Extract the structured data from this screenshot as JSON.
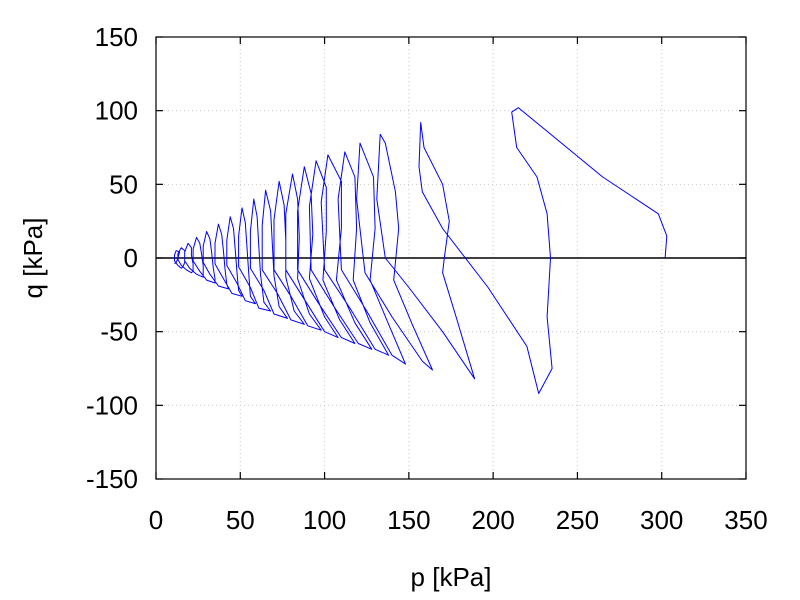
{
  "chart_data": {
    "type": "line",
    "title": "",
    "xlabel": "p [kPa]",
    "ylabel": "q [kPa]",
    "xlim": [
      0,
      350
    ],
    "ylim": [
      -150,
      150
    ],
    "xticks": [
      0,
      50,
      100,
      150,
      200,
      250,
      300,
      350
    ],
    "yticks": [
      -150,
      -100,
      -50,
      0,
      50,
      100,
      150
    ],
    "grid": true,
    "legend": "none",
    "colors": {
      "series": "#0000ff",
      "zero_line": "#000000",
      "grid": "#c8c8c8"
    },
    "series": [
      {
        "values": [
          [
            302,
            0
          ],
          [
            303,
            15
          ],
          [
            298,
            30
          ],
          [
            265,
            55
          ],
          [
            215,
            102
          ],
          [
            211,
            99
          ],
          [
            214,
            75
          ],
          [
            226,
            55
          ],
          [
            232,
            30
          ],
          [
            234,
            0
          ],
          [
            232,
            -40
          ],
          [
            235,
            -75
          ],
          [
            227,
            -92
          ],
          [
            220,
            -60
          ],
          [
            197,
            -20
          ],
          [
            170,
            20
          ],
          [
            158,
            45
          ],
          [
            156,
            62
          ],
          [
            157,
            92
          ],
          [
            159,
            75
          ],
          [
            170,
            50
          ],
          [
            174,
            25
          ],
          [
            171,
            0
          ],
          [
            170,
            -10
          ],
          [
            178,
            -40
          ],
          [
            189,
            -82
          ],
          [
            170,
            -50
          ],
          [
            150,
            -20
          ],
          [
            136,
            0
          ],
          [
            131,
            40
          ],
          [
            133,
            84
          ],
          [
            136,
            78
          ],
          [
            142,
            45
          ],
          [
            144,
            20
          ],
          [
            141,
            -15
          ],
          [
            152,
            -45
          ],
          [
            164,
            -76
          ],
          [
            158,
            -70
          ],
          [
            140,
            -40
          ],
          [
            124,
            -10
          ],
          [
            119,
            40
          ],
          [
            121,
            78
          ],
          [
            129,
            55
          ],
          [
            130,
            20
          ],
          [
            127,
            -15
          ],
          [
            138,
            -45
          ],
          [
            148,
            -72
          ],
          [
            140,
            -66
          ],
          [
            125,
            -36
          ],
          [
            110,
            -8
          ],
          [
            108,
            40
          ],
          [
            112,
            72
          ],
          [
            118,
            55
          ],
          [
            119,
            20
          ],
          [
            117,
            -15
          ],
          [
            127,
            -44
          ],
          [
            138,
            -66
          ],
          [
            130,
            -62
          ],
          [
            115,
            -34
          ],
          [
            100,
            -8
          ],
          [
            98,
            38
          ],
          [
            102,
            70
          ],
          [
            110,
            52
          ],
          [
            110,
            20
          ],
          [
            107,
            -15
          ],
          [
            118,
            -44
          ],
          [
            128,
            -62
          ],
          [
            120,
            -58
          ],
          [
            105,
            -32
          ],
          [
            92,
            -8
          ],
          [
            91,
            35
          ],
          [
            95,
            66
          ],
          [
            101,
            48
          ],
          [
            101,
            18
          ],
          [
            99,
            -15
          ],
          [
            109,
            -42
          ],
          [
            118,
            -58
          ],
          [
            110,
            -54
          ],
          [
            96,
            -30
          ],
          [
            84,
            -8
          ],
          [
            84,
            32
          ],
          [
            88,
            62
          ],
          [
            92,
            44
          ],
          [
            93,
            16
          ],
          [
            91,
            -14
          ],
          [
            100,
            -40
          ],
          [
            108,
            -54
          ],
          [
            100,
            -50
          ],
          [
            88,
            -28
          ],
          [
            77,
            -8
          ],
          [
            77,
            30
          ],
          [
            81,
            57
          ],
          [
            84,
            40
          ],
          [
            85,
            14
          ],
          [
            84,
            -14
          ],
          [
            91,
            -38
          ],
          [
            98,
            -49
          ],
          [
            90,
            -46
          ],
          [
            80,
            -26
          ],
          [
            70,
            -8
          ],
          [
            70,
            26
          ],
          [
            73,
            52
          ],
          [
            76,
            36
          ],
          [
            77,
            12
          ],
          [
            77,
            -13
          ],
          [
            82,
            -36
          ],
          [
            88,
            -45
          ],
          [
            80,
            -42
          ],
          [
            72,
            -24
          ],
          [
            63,
            -8
          ],
          [
            63,
            22
          ],
          [
            65,
            46
          ],
          [
            68,
            32
          ],
          [
            69,
            10
          ],
          [
            70,
            -12
          ],
          [
            73,
            -33
          ],
          [
            78,
            -41
          ],
          [
            70,
            -38
          ],
          [
            64,
            -22
          ],
          [
            56,
            -7
          ],
          [
            56,
            18
          ],
          [
            58,
            40
          ],
          [
            60,
            28
          ],
          [
            61,
            8
          ],
          [
            62,
            -11
          ],
          [
            64,
            -30
          ],
          [
            68,
            -36
          ],
          [
            61,
            -34
          ],
          [
            56,
            -20
          ],
          [
            49,
            -6
          ],
          [
            49,
            15
          ],
          [
            51,
            34
          ],
          [
            53,
            24
          ],
          [
            54,
            7
          ],
          [
            55,
            -10
          ],
          [
            56,
            -26
          ],
          [
            59,
            -31
          ],
          [
            53,
            -29
          ],
          [
            48,
            -17
          ],
          [
            42,
            -5
          ],
          [
            42,
            12
          ],
          [
            44,
            28
          ],
          [
            46,
            20
          ],
          [
            47,
            6
          ],
          [
            48,
            -9
          ],
          [
            49,
            -22
          ],
          [
            51,
            -26
          ],
          [
            45,
            -24
          ],
          [
            40,
            -14
          ],
          [
            35,
            -4
          ],
          [
            35,
            10
          ],
          [
            37,
            23
          ],
          [
            39,
            16
          ],
          [
            40,
            5
          ],
          [
            41,
            -8
          ],
          [
            42,
            -18
          ],
          [
            43,
            -21
          ],
          [
            37,
            -19
          ],
          [
            32,
            -11
          ],
          [
            28,
            -3
          ],
          [
            28,
            8
          ],
          [
            30,
            18
          ],
          [
            32,
            13
          ],
          [
            33,
            4
          ],
          [
            34,
            -7
          ],
          [
            35,
            -14
          ],
          [
            35,
            -17
          ],
          [
            30,
            -15
          ],
          [
            26,
            -9
          ],
          [
            22,
            -2
          ],
          [
            22,
            6
          ],
          [
            24,
            14
          ],
          [
            26,
            10
          ],
          [
            27,
            3
          ],
          [
            28,
            -5
          ],
          [
            28,
            -11
          ],
          [
            28,
            -13
          ],
          [
            24,
            -11
          ],
          [
            20,
            -7
          ],
          [
            17,
            -2
          ],
          [
            17,
            4
          ],
          [
            19,
            10
          ],
          [
            21,
            7
          ],
          [
            21,
            2
          ],
          [
            22,
            -4
          ],
          [
            22,
            -9
          ],
          [
            21,
            -10
          ],
          [
            18,
            -8
          ],
          [
            15,
            -5
          ],
          [
            13,
            -1
          ],
          [
            13,
            3
          ],
          [
            15,
            7
          ],
          [
            17,
            5
          ],
          [
            17,
            1
          ],
          [
            17,
            -3
          ],
          [
            16,
            -6
          ],
          [
            15,
            -7
          ],
          [
            13,
            -5
          ],
          [
            11,
            -2
          ],
          [
            11,
            2
          ],
          [
            12,
            5
          ],
          [
            14,
            4
          ],
          [
            13,
            0
          ],
          [
            12,
            -3
          ],
          [
            11,
            -4
          ]
        ]
      }
    ]
  }
}
